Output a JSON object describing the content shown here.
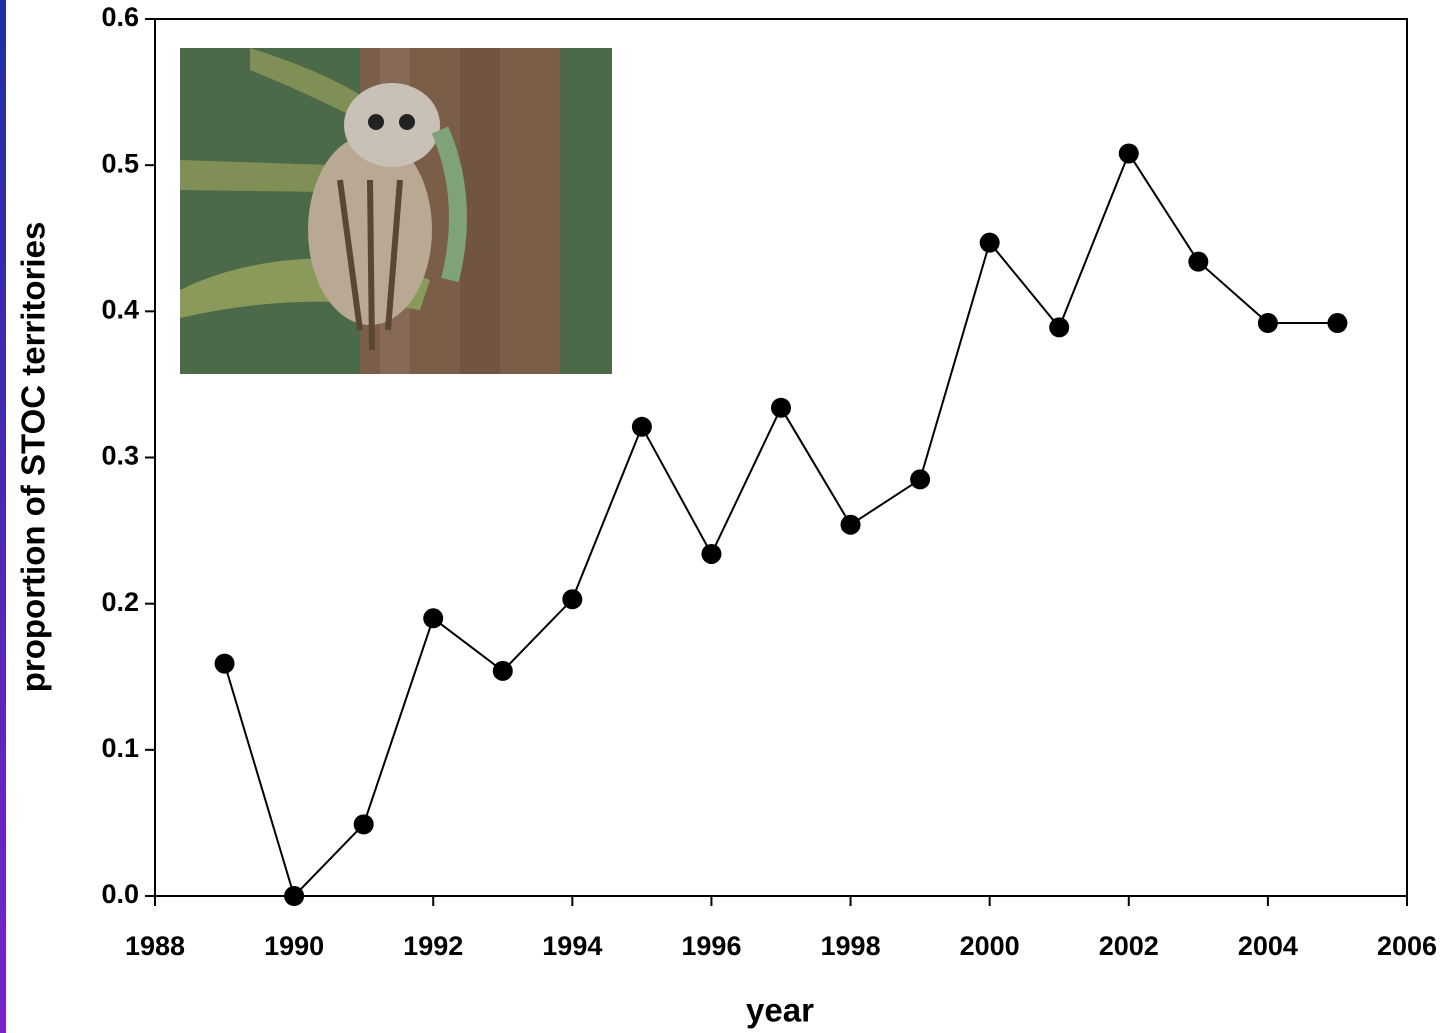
{
  "chart_data": {
    "type": "line",
    "xlabel": "year",
    "ylabel": "proportion of STOC territories",
    "x": [
      1989,
      1990,
      1991,
      1992,
      1993,
      1994,
      1995,
      1996,
      1997,
      1998,
      1999,
      2000,
      2001,
      2002,
      2003,
      2004,
      2005
    ],
    "series": [
      {
        "color": "#000000",
        "values": [
          0.159,
          0.0,
          0.049,
          0.19,
          0.154,
          0.203,
          0.321,
          0.234,
          0.334,
          0.254,
          0.285,
          0.447,
          0.389,
          0.508,
          0.434,
          0.392,
          0.392
        ]
      }
    ],
    "xlim": [
      1988,
      2006
    ],
    "xticks": [
      1988,
      1990,
      1992,
      1994,
      1996,
      1998,
      2000,
      2002,
      2004,
      2006
    ],
    "ylim": [
      0,
      0.6
    ],
    "yticks": [
      {
        "value": 0,
        "label": "0.0"
      },
      0.1,
      0.2,
      0.3,
      0.4,
      0.5,
      0.6
    ],
    "grid": false
  }
}
